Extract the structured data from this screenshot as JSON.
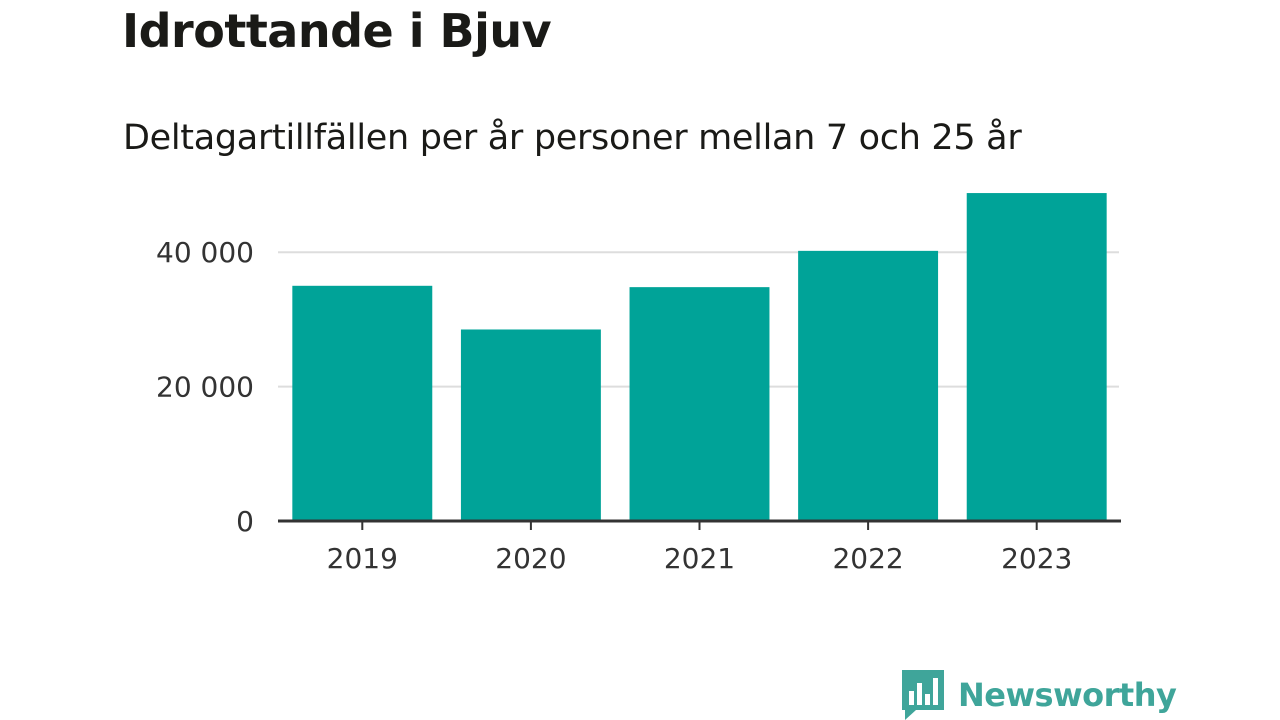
{
  "header": {
    "title": "Idrottande i Bjuv",
    "subtitle": "Deltagartillfällen per år personer mellan 7 och 25 år"
  },
  "brand": {
    "name": "Newsworthy",
    "color": "#3fa59a",
    "icon": "bar-chart-speech-bubble-icon"
  },
  "colors": {
    "bar": "#00a398",
    "grid": "#dddddd",
    "axis": "#333333"
  },
  "chart_data": {
    "type": "bar",
    "categories": [
      "2019",
      "2020",
      "2021",
      "2022",
      "2023"
    ],
    "values": [
      35000,
      28500,
      34800,
      40200,
      48800
    ],
    "title": "Idrottande i Bjuv",
    "subtitle": "Deltagartillfällen per år personer mellan 7 och 25 år",
    "xlabel": "",
    "ylabel": "",
    "ylim": [
      0,
      50000
    ],
    "yticks": [
      0,
      20000,
      40000
    ],
    "ytick_labels": [
      "0",
      "20 000",
      "40 000"
    ],
    "grid": true,
    "legend": "none"
  }
}
